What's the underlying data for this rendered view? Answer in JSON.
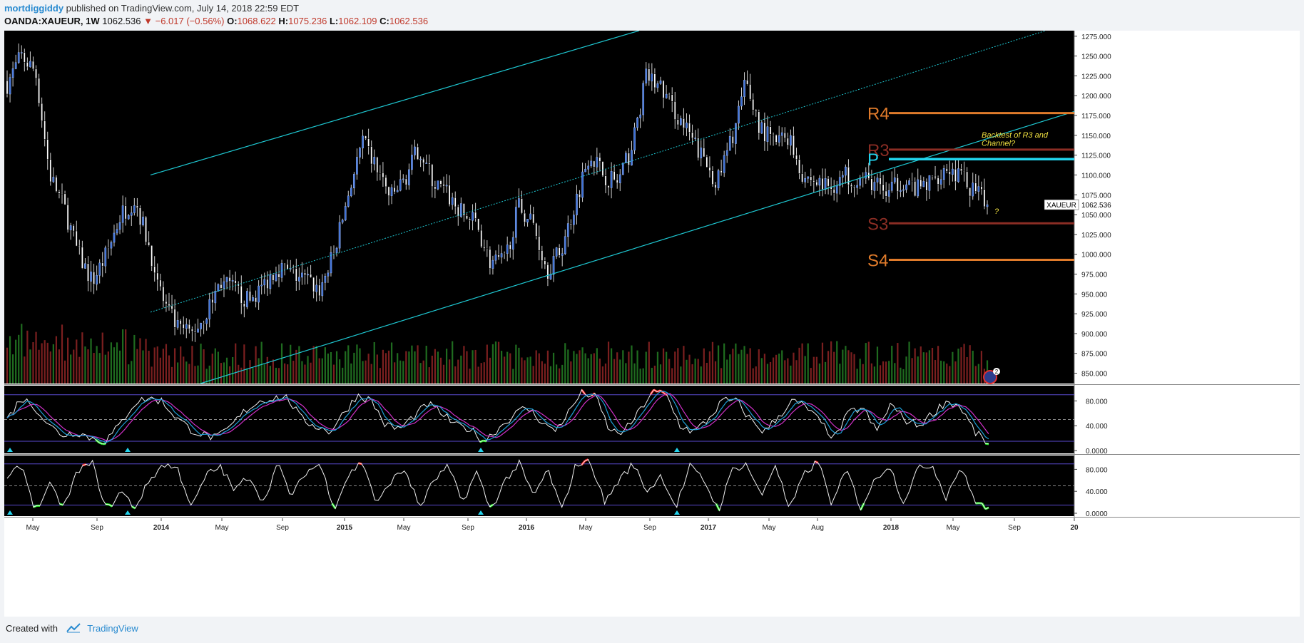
{
  "header": {
    "author": "mortdiggiddy",
    "published_text": "published on TradingView.com, July 14, 2018 22:59 EDT",
    "symbol": "OANDA:XAUEUR, 1W",
    "last": "1062.536",
    "change": "−6.017 (−0.56%)",
    "o_label": "O:",
    "o_value": "1068.622",
    "h_label": "H:",
    "h_value": "1075.236",
    "l_label": "L:",
    "l_value": "1062.109",
    "c_label": "C:",
    "c_value": "1062.536"
  },
  "footer": {
    "created_with": "Created with",
    "brand": "TradingView"
  },
  "colors": {
    "background": "#000000",
    "up_candle": "#3b6fd8",
    "down_candle": "#ffffff",
    "volume_up": "#1f6b1f",
    "volume_down": "#7a1f1f",
    "channel": "#1ec8d2",
    "R4": "#e07b2b",
    "R3": "#8b2d24",
    "P": "#22d4ee",
    "S3": "#8b2d24",
    "S4": "#e07b2b",
    "stoch_k": "#1e9fd8",
    "stoch_d": "#d030c8",
    "overbought": "#ff2020",
    "oversold": "#22ee22"
  },
  "chart_data": [
    {
      "type": "candlestick",
      "title": "OANDA:XAUEUR, 1W",
      "y_ticks": [
        "1275.000",
        "1250.000",
        "1225.000",
        "1200.000",
        "1175.000",
        "1150.000",
        "1125.000",
        "1100.000",
        "1075.000",
        "1050.000",
        "1025.000",
        "1000.000",
        "975.000",
        "950.000",
        "925.000",
        "900.000",
        "875.000",
        "850.000"
      ],
      "ylim": [
        837,
        1282
      ],
      "x_ticks": [
        "May",
        "Sep",
        "2014",
        "May",
        "Sep",
        "2015",
        "May",
        "Sep",
        "2016",
        "May",
        "Sep",
        "2017",
        "May",
        "Aug",
        "2018",
        "May",
        "Sep",
        "20"
      ],
      "close_path": [
        1215,
        1250,
        1230,
        1100,
        1060,
        1000,
        965,
        1000,
        1050,
        1070,
        1010,
        940,
        905,
        900,
        925,
        965,
        955,
        940,
        960,
        985,
        975,
        968,
        955,
        1000,
        1075,
        1140,
        1110,
        1070,
        1095,
        1135,
        1090,
        1075,
        1050,
        1040,
        990,
        990,
        1060,
        1040,
        980,
        1005,
        1065,
        1130,
        1100,
        1090,
        1135,
        1225,
        1210,
        1180,
        1150,
        1120,
        1090,
        1145,
        1215,
        1160,
        1140,
        1150,
        1100,
        1090,
        1085,
        1100,
        1095,
        1090,
        1075,
        1095,
        1080,
        1090,
        1110,
        1100,
        1080,
        1062.536
      ],
      "last_price_label": "XAUEUR",
      "last_price": "1062.536",
      "pivots": [
        {
          "name": "R4",
          "value": 1178
        },
        {
          "name": "R3",
          "value": 1132
        },
        {
          "name": "P",
          "value": 1120
        },
        {
          "name": "S3",
          "value": 1039
        },
        {
          "name": "S4",
          "value": 993
        }
      ],
      "annotations": [
        "Backtest of R3 and",
        "Channel?",
        "?"
      ],
      "event_badge": "2"
    },
    {
      "type": "line",
      "name": "stochastic-fast",
      "y_ticks": [
        "80.000",
        "40.000",
        "0.0000"
      ],
      "ylim": [
        0,
        100
      ],
      "band_upper": 90,
      "band_mid": 50,
      "band_lower": 15,
      "k_path": [
        50,
        85,
        70,
        40,
        25,
        30,
        20,
        15,
        40,
        75,
        85,
        80,
        55,
        35,
        25,
        20,
        40,
        65,
        80,
        85,
        85,
        50,
        40,
        30,
        60,
        90,
        80,
        40,
        35,
        55,
        75,
        60,
        40,
        35,
        15,
        35,
        55,
        70,
        50,
        30,
        60,
        95,
        85,
        30,
        30,
        60,
        95,
        90,
        40,
        30,
        50,
        80,
        80,
        50,
        30,
        55,
        80,
        70,
        45,
        20,
        60,
        70,
        30,
        75,
        50,
        40,
        60,
        80,
        70,
        30,
        10
      ]
    },
    {
      "type": "line",
      "name": "stochastic-slow",
      "y_ticks": [
        "80.000",
        "40.000",
        "0.0000"
      ],
      "ylim": [
        0,
        100
      ],
      "band_upper": 90,
      "band_mid": 50,
      "band_lower": 15,
      "k_path": [
        60,
        90,
        5,
        50,
        10,
        80,
        90,
        5,
        40,
        10,
        60,
        90,
        80,
        10,
        70,
        85,
        40,
        70,
        20,
        90,
        30,
        75,
        90,
        10,
        70,
        95,
        15,
        60,
        80,
        10,
        60,
        85,
        20,
        75,
        5,
        60,
        90,
        30,
        80,
        5,
        90,
        95,
        20,
        60,
        90,
        40,
        70,
        10,
        85,
        60,
        5,
        80,
        90,
        30,
        90,
        5,
        70,
        95,
        15,
        80,
        10,
        60,
        90,
        20,
        80,
        90,
        30,
        85,
        25,
        5
      ]
    }
  ]
}
